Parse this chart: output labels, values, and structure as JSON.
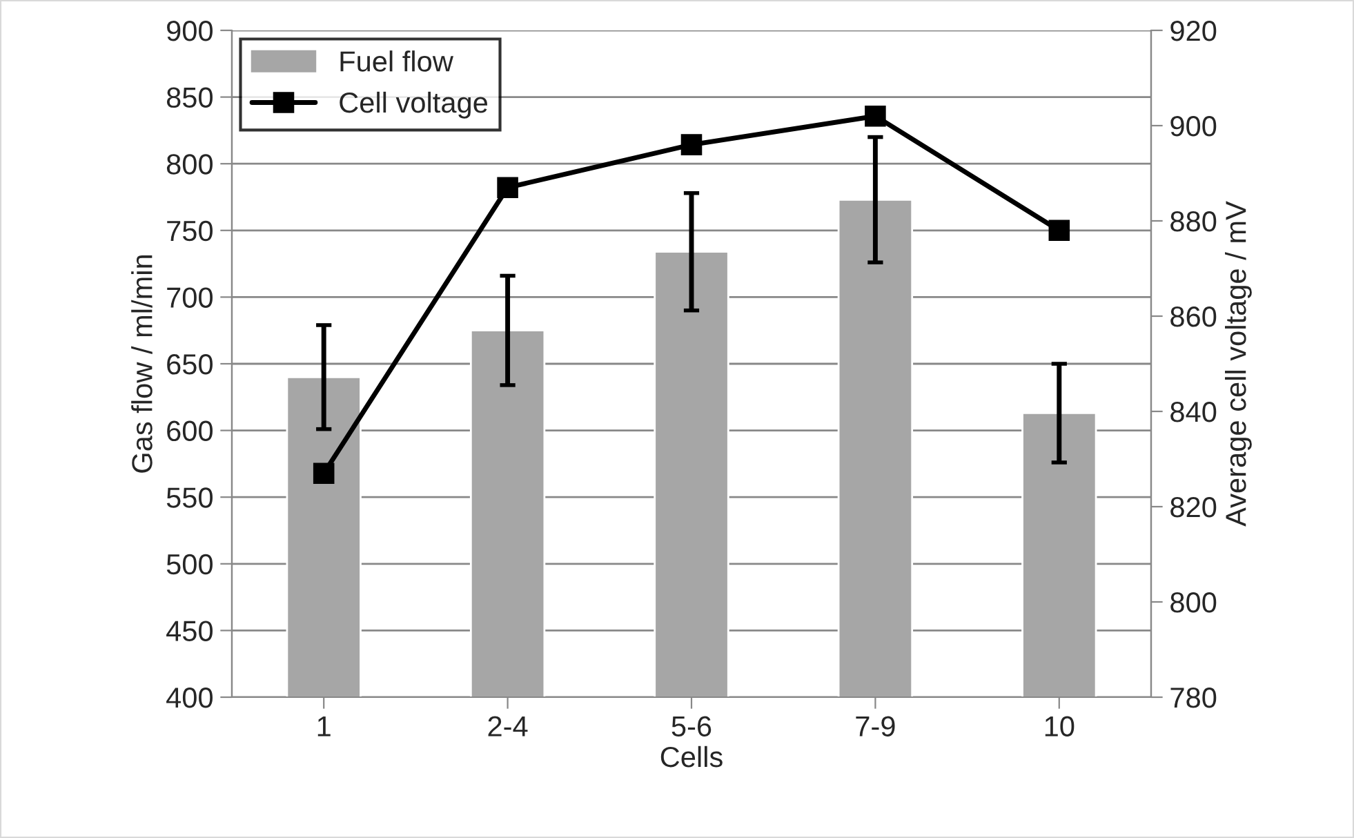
{
  "chart_data": {
    "type": "bar",
    "xlabel": "Cells",
    "ylabel": "Gas flow / ml/min",
    "y2label": "Average cell voltage / mV",
    "categories": [
      "1",
      "2-4",
      "5-6",
      "7-9",
      "10"
    ],
    "series": [
      {
        "name": "Fuel flow",
        "color": "#a6a6a6",
        "values": [
          640,
          675,
          734,
          773,
          613
        ],
        "errors": [
          39,
          41,
          44,
          47,
          37
        ]
      },
      {
        "name": "Cell voltage",
        "type": "line",
        "axis": "y2",
        "color": "#000000",
        "marker": "square",
        "values": [
          827,
          887,
          896,
          902,
          878
        ]
      }
    ],
    "ylim": [
      400,
      900
    ],
    "yticks": [
      400,
      450,
      500,
      550,
      600,
      650,
      700,
      750,
      800,
      850,
      900
    ],
    "y2lim": [
      780,
      920
    ],
    "y2ticks": [
      780,
      800,
      820,
      840,
      860,
      880,
      900,
      920
    ],
    "grid": "y",
    "legend": "top left"
  }
}
